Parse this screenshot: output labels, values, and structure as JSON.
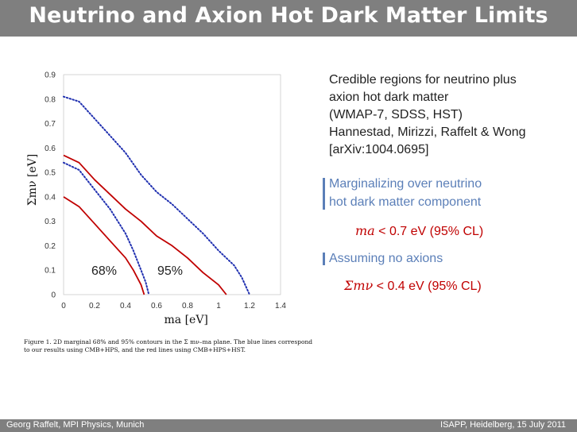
{
  "slide": {
    "title": "Neutrino and Axion Hot Dark Matter Limits",
    "footer_left": "Georg Raffelt, MPI Physics, Munich",
    "footer_right": "ISAPP, Heidelberg, 15 July 2011"
  },
  "description": {
    "line1": "Credible regions for neutrino plus",
    "line2": "axion hot dark matter",
    "line3": "(WMAP-7, SDSS, HST)",
    "line4": "Hannestad, Mirizzi, Raffelt & Wong",
    "line5": "[arXiv:1004.0695]"
  },
  "results": {
    "heading1_line1": "Marginalizing over neutrino",
    "heading1_line2": "hot dark matter component",
    "formula1_var": "ma",
    "formula1_rest": "< 0.7 eV  (95% CL)",
    "heading2": "Assuming no axions",
    "formula2_var": "Σmν",
    "formula2_rest": "< 0.4 eV  (95% CL)"
  },
  "caption": {
    "text": "Figure 1. 2D marginal 68% and 95% contours in the Σ mν–ma plane. The blue lines correspond to our results using CMB+HPS, and the red lines using CMB+HPS+HST."
  },
  "colors": {
    "blue": "#2030b0",
    "red": "#c00000"
  },
  "chart_data": {
    "type": "line",
    "xlabel": "ma [eV]",
    "ylabel": "Σmν [eV]",
    "xlim": [
      0,
      1.4
    ],
    "ylim": [
      0,
      0.9
    ],
    "xticks": [
      "0",
      "0.2",
      "0.4",
      "0.6",
      "0.8",
      "1",
      "1.2",
      "1.4"
    ],
    "yticks": [
      "0",
      "0.1",
      "0.2",
      "0.3",
      "0.4",
      "0.5",
      "0.6",
      "0.7",
      "0.8",
      "0.9"
    ],
    "label_68": "68%",
    "label_95": "95%",
    "series": [
      {
        "name": "blue 95%",
        "color": "blue",
        "style": "dotted",
        "x": [
          0,
          0.1,
          0.2,
          0.3,
          0.4,
          0.5,
          0.6,
          0.7,
          0.8,
          0.9,
          1.0,
          1.1,
          1.15,
          1.2
        ],
        "y": [
          0.81,
          0.79,
          0.72,
          0.65,
          0.58,
          0.49,
          0.42,
          0.37,
          0.31,
          0.25,
          0.18,
          0.12,
          0.07,
          0.0
        ]
      },
      {
        "name": "blue 68%",
        "color": "blue",
        "style": "dotted",
        "x": [
          0,
          0.1,
          0.2,
          0.3,
          0.4,
          0.45,
          0.5,
          0.53,
          0.55
        ],
        "y": [
          0.54,
          0.51,
          0.43,
          0.35,
          0.25,
          0.18,
          0.1,
          0.05,
          0.0
        ]
      },
      {
        "name": "red 95%",
        "color": "red",
        "style": "solid",
        "x": [
          0,
          0.1,
          0.2,
          0.3,
          0.4,
          0.5,
          0.6,
          0.7,
          0.8,
          0.9,
          1.0,
          1.05
        ],
        "y": [
          0.57,
          0.54,
          0.47,
          0.41,
          0.35,
          0.3,
          0.24,
          0.2,
          0.15,
          0.09,
          0.04,
          0.0
        ]
      },
      {
        "name": "red 68%",
        "color": "red",
        "style": "solid",
        "x": [
          0,
          0.1,
          0.2,
          0.3,
          0.4,
          0.45,
          0.5,
          0.52
        ],
        "y": [
          0.4,
          0.36,
          0.29,
          0.22,
          0.15,
          0.1,
          0.04,
          0.0
        ]
      }
    ]
  }
}
